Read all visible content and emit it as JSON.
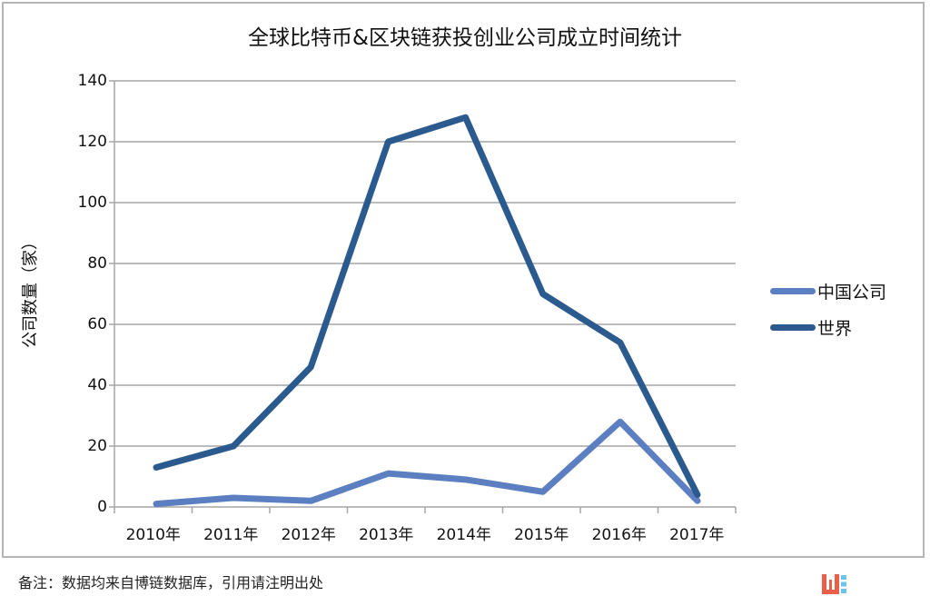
{
  "chart_data": {
    "type": "line",
    "title": "全球比特币&区块链获投创业公司成立时间统计",
    "xlabel": "",
    "ylabel": "公司数量（家）",
    "categories": [
      "2010年",
      "2011年",
      "2012年",
      "2013年",
      "2014年",
      "2015年",
      "2016年",
      "2017年"
    ],
    "series": [
      {
        "name": "中国公司",
        "color": "#5b7fc0",
        "values": [
          1,
          3,
          2,
          11,
          9,
          5,
          28,
          2
        ]
      },
      {
        "name": "世界",
        "color": "#2b5a8f",
        "values": [
          13,
          20,
          46,
          120,
          128,
          70,
          54,
          4
        ]
      }
    ],
    "ylim": [
      0,
      140
    ],
    "yticks": [
      0,
      20,
      40,
      60,
      80,
      100,
      120,
      140
    ],
    "grid": true,
    "legend_position": "right"
  },
  "footer": {
    "note": "备注：数据均来自博链数据库，引用请注明出处"
  },
  "logo": {
    "icon": "brand-logo-icon",
    "colors": [
      "#e8604c",
      "#6cc3ec"
    ]
  }
}
